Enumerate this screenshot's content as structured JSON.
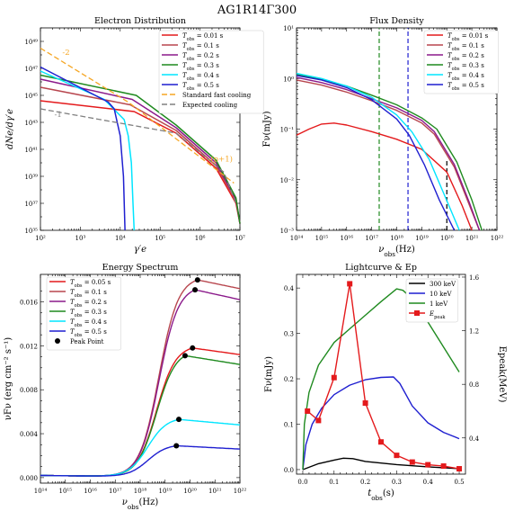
{
  "suptitle": "AG1R14Γ300",
  "colors": {
    "red": "#e41a1c",
    "brown": "#b8474f",
    "purple": "#8b1a8b",
    "green": "#1f8a1f",
    "cyan": "#00e5ff",
    "blue": "#1f1fd0",
    "orange": "#f5a623",
    "gray": "#808080",
    "black": "#000000"
  },
  "chart_data": [
    {
      "id": "p1",
      "type": "line",
      "title": "Electron Distribution",
      "xlabel": "γ′e",
      "ylabel": "dNe/dγ′e",
      "xscale": "log",
      "yscale": "log",
      "xlim_exp": [
        2,
        7
      ],
      "ylim_exp": [
        35,
        50
      ],
      "xticks": [
        "10²",
        "10³",
        "10⁴",
        "10⁵",
        "10⁶",
        "10⁷"
      ],
      "yticks": [
        "10³⁵",
        "10³⁷",
        "10³⁹",
        "10⁴¹",
        "10⁴³",
        "10⁴⁵",
        "10⁴⁷",
        "10⁴⁹"
      ],
      "legend_position": "top-right",
      "annotations": [
        {
          "text": "-2",
          "x": 2.55,
          "y": 48.0,
          "color": "orange"
        },
        {
          "text": "-1",
          "x": 2.35,
          "y": 43.4,
          "color": "gray"
        },
        {
          "text": "-(p+1)",
          "x": 6.2,
          "y": 40.1,
          "color": "orange"
        }
      ],
      "series": [
        {
          "name": "Tobs = 0.01 s",
          "color": "red",
          "x": [
            2,
            4.35,
            5.4,
            6.4,
            6.9,
            7.0
          ],
          "y": [
            44.6,
            43.8,
            42.2,
            39.6,
            37.0,
            35.5
          ]
        },
        {
          "name": "Tobs = 0.1 s",
          "color": "brown",
          "x": [
            2,
            4.25,
            5.4,
            6.4,
            6.9,
            7.0
          ],
          "y": [
            45.6,
            44.3,
            42.4,
            39.8,
            37.2,
            35.5
          ]
        },
        {
          "name": "Tobs = 0.2 s",
          "color": "purple",
          "x": [
            2,
            4.3,
            5.4,
            6.4,
            6.9,
            7.0
          ],
          "y": [
            46.2,
            44.7,
            42.6,
            40.0,
            37.3,
            35.5
          ]
        },
        {
          "name": "Tobs = 0.3 s",
          "color": "green",
          "x": [
            2,
            4.4,
            5.4,
            6.4,
            6.9,
            7.0
          ],
          "y": [
            46.5,
            45.0,
            42.8,
            40.2,
            37.4,
            35.5
          ]
        },
        {
          "name": "Tobs = 0.4 s",
          "color": "cyan",
          "x": [
            2,
            3.6,
            4.1,
            4.2,
            4.28,
            4.32,
            4.35
          ],
          "y": [
            46.8,
            44.7,
            43.2,
            42.0,
            40.0,
            37.0,
            35.0
          ]
        },
        {
          "name": "Tobs = 0.5 s",
          "color": "blue",
          "x": [
            2,
            3.7,
            3.85,
            4.0,
            4.08,
            4.12
          ],
          "y": [
            47.1,
            44.5,
            44.0,
            42.0,
            39.0,
            35.0
          ]
        },
        {
          "name": "Standard fast cooling",
          "color": "orange",
          "dash": "6,3",
          "x": [
            2,
            4.2,
            6.85
          ],
          "y": [
            48.5,
            44.5,
            38.5
          ]
        },
        {
          "name": "Expected cooling",
          "color": "gray",
          "dash": "6,3",
          "x": [
            2,
            5.4,
            6.6,
            6.9
          ],
          "y": [
            44.0,
            42.2,
            39.3,
            37.0
          ]
        }
      ]
    },
    {
      "id": "p2",
      "type": "line",
      "title": "Flux Density",
      "xlabel": "νobs(Hz)",
      "ylabel": "Fν(mJy)",
      "xscale": "log",
      "yscale": "log",
      "xlim_exp": [
        14,
        22
      ],
      "ylim_exp": [
        -3,
        1
      ],
      "xticks": [
        "10¹⁴",
        "10¹⁵",
        "10¹⁶",
        "10¹⁷",
        "10¹⁸",
        "10¹⁹",
        "10²⁰",
        "10²¹",
        "10²²"
      ],
      "yticks": [
        "10⁻³",
        "10⁻²",
        "10⁻¹",
        "10⁰",
        "10¹"
      ],
      "legend_position": "top-right",
      "vlines": [
        {
          "x": 17.3,
          "color": "green",
          "ymax": 1.0
        },
        {
          "x": 18.45,
          "color": "blue",
          "ymax": 1.0
        },
        {
          "x": 20.0,
          "color": "black",
          "ymax": -1.6
        }
      ],
      "series": [
        {
          "name": "Tobs = 0.01 s",
          "color": "red",
          "x": [
            14,
            14.5,
            15.0,
            15.5,
            16.0,
            17.0,
            18.0,
            19.0,
            20.0,
            20.6,
            21.0
          ],
          "y": [
            -1.12,
            -1.0,
            -0.9,
            -0.88,
            -0.92,
            -1.05,
            -1.2,
            -1.4,
            -1.85,
            -2.5,
            -3.0
          ]
        },
        {
          "name": "Tobs = 0.1 s",
          "color": "brown",
          "x": [
            14,
            15,
            16,
            17,
            18,
            19,
            19.5,
            20.3,
            20.9,
            21.3
          ],
          "y": [
            -0.03,
            -0.13,
            -0.27,
            -0.44,
            -0.63,
            -0.88,
            -1.1,
            -1.75,
            -2.5,
            -3.0
          ]
        },
        {
          "name": "Tobs = 0.2 s",
          "color": "purple",
          "x": [
            14,
            15,
            16,
            17,
            18,
            19,
            19.5,
            20.3,
            20.9,
            21.3
          ],
          "y": [
            0.02,
            -0.08,
            -0.22,
            -0.4,
            -0.58,
            -0.83,
            -1.05,
            -1.7,
            -2.45,
            -3.0
          ]
        },
        {
          "name": "Tobs = 0.3 s",
          "color": "green",
          "x": [
            14,
            15,
            16,
            17,
            18,
            19,
            19.6,
            20.4,
            21.0,
            21.4
          ],
          "y": [
            0.08,
            -0.02,
            -0.15,
            -0.33,
            -0.52,
            -0.78,
            -1.0,
            -1.65,
            -2.4,
            -3.0
          ]
        },
        {
          "name": "Tobs = 0.4 s",
          "color": "cyan",
          "x": [
            14,
            15,
            16,
            17,
            18,
            18.6,
            19.3,
            19.9,
            20.5
          ],
          "y": [
            0.1,
            0.0,
            -0.15,
            -0.37,
            -0.72,
            -1.05,
            -1.6,
            -2.3,
            -3.0
          ]
        },
        {
          "name": "Tobs = 0.5 s",
          "color": "blue",
          "x": [
            14,
            15,
            16,
            17,
            18,
            18.5,
            19.1,
            19.7,
            20.3
          ],
          "y": [
            0.06,
            -0.03,
            -0.18,
            -0.42,
            -0.8,
            -1.12,
            -1.7,
            -2.4,
            -3.0
          ]
        }
      ]
    },
    {
      "id": "p3",
      "type": "line",
      "title": "Energy Spectrum",
      "xlabel": "νobs(Hz)",
      "ylabel": "νFν (erg cm⁻² s⁻¹)",
      "xscale": "log",
      "yscale": "linear",
      "xlim_exp": [
        14,
        22
      ],
      "ylim": [
        -0.0005,
        0.0185
      ],
      "xticks": [
        "10¹⁴",
        "10¹⁵",
        "10¹⁶",
        "10¹⁷",
        "10¹⁸",
        "10¹⁹",
        "10²⁰",
        "10²¹",
        "10²²"
      ],
      "yticks": [
        "0.000",
        "0.004",
        "0.008",
        "0.012",
        "0.016"
      ],
      "ytick_values": [
        0,
        0.004,
        0.008,
        0.012,
        0.016
      ],
      "legend_position": "top-left",
      "series": [
        {
          "name": "Tobs = 0.05 s",
          "color": "red",
          "rise": 18.65,
          "peak": 0.0118,
          "peak_x": 20.1,
          "end": 0.0112
        },
        {
          "name": "Tobs = 0.1 s",
          "color": "brown",
          "rise": 18.75,
          "peak": 0.018,
          "peak_x": 20.3,
          "end": 0.0172
        },
        {
          "name": "Tobs = 0.2 s",
          "color": "purple",
          "rise": 18.75,
          "peak": 0.0171,
          "peak_x": 20.2,
          "end": 0.0162
        },
        {
          "name": "Tobs = 0.3 s",
          "color": "green",
          "rise": 18.65,
          "peak": 0.0111,
          "peak_x": 19.8,
          "end": 0.0103
        },
        {
          "name": "Tobs = 0.4 s",
          "color": "cyan",
          "rise": 18.3,
          "peak": 0.0053,
          "peak_x": 19.55,
          "end": 0.0048
        },
        {
          "name": "Tobs = 0.5 s",
          "color": "blue",
          "rise": 18.3,
          "peak": 0.0029,
          "peak_x": 19.45,
          "end": 0.0026
        }
      ],
      "peak_point_label": "Peak Point"
    },
    {
      "id": "p4",
      "type": "line",
      "title": "Lightcurve & Ep",
      "xlabel": "tobs(s)",
      "ylabel": "Fν(mJy)",
      "y2label": "Epeak(MeV)",
      "xlim": [
        -0.02,
        0.52
      ],
      "ylim": [
        -0.01,
        0.43
      ],
      "y2lim": [
        0.13,
        1.62
      ],
      "xticks": [
        "0.0",
        "0.1",
        "0.2",
        "0.3",
        "0.4",
        "0.5"
      ],
      "xtick_values": [
        0,
        0.1,
        0.2,
        0.3,
        0.4,
        0.5
      ],
      "yticks": [
        "0.0",
        "0.1",
        "0.2",
        "0.3",
        "0.4"
      ],
      "ytick_values": [
        0,
        0.1,
        0.2,
        0.3,
        0.4
      ],
      "y2ticks": [
        "0.4",
        "0.8",
        "1.2",
        "1.6"
      ],
      "y2tick_values": [
        0.4,
        0.8,
        1.2,
        1.6
      ],
      "legend_position": "top-right",
      "series": [
        {
          "name": "300 keV",
          "color": "black",
          "x": [
            0,
            0.05,
            0.1,
            0.13,
            0.16,
            0.2,
            0.3,
            0.4,
            0.5
          ],
          "y": [
            0.0,
            0.013,
            0.021,
            0.025,
            0.024,
            0.018,
            0.011,
            0.006,
            0.002
          ]
        },
        {
          "name": "10 keV",
          "color": "blue",
          "x": [
            0,
            0.01,
            0.03,
            0.06,
            0.1,
            0.15,
            0.2,
            0.25,
            0.29,
            0.31,
            0.35,
            0.4,
            0.45,
            0.5
          ],
          "y": [
            0.0,
            0.055,
            0.1,
            0.135,
            0.165,
            0.186,
            0.198,
            0.203,
            0.204,
            0.19,
            0.14,
            0.103,
            0.082,
            0.068
          ]
        },
        {
          "name": "1 keV",
          "color": "green",
          "x": [
            0,
            0.005,
            0.02,
            0.05,
            0.1,
            0.15,
            0.2,
            0.25,
            0.3,
            0.32,
            0.36,
            0.4,
            0.45,
            0.5
          ],
          "y": [
            0.0,
            0.1,
            0.17,
            0.23,
            0.28,
            0.31,
            0.34,
            0.37,
            0.398,
            0.395,
            0.37,
            0.325,
            0.27,
            0.215
          ]
        },
        {
          "name": "Epeak",
          "color": "red",
          "axis": "right",
          "marker": "square",
          "x": [
            0.015,
            0.05,
            0.1,
            0.15,
            0.2,
            0.25,
            0.3,
            0.35,
            0.4,
            0.45,
            0.5
          ],
          "y": [
            0.6,
            0.53,
            0.85,
            1.55,
            0.66,
            0.37,
            0.27,
            0.22,
            0.2,
            0.19,
            0.17
          ]
        }
      ]
    }
  ]
}
